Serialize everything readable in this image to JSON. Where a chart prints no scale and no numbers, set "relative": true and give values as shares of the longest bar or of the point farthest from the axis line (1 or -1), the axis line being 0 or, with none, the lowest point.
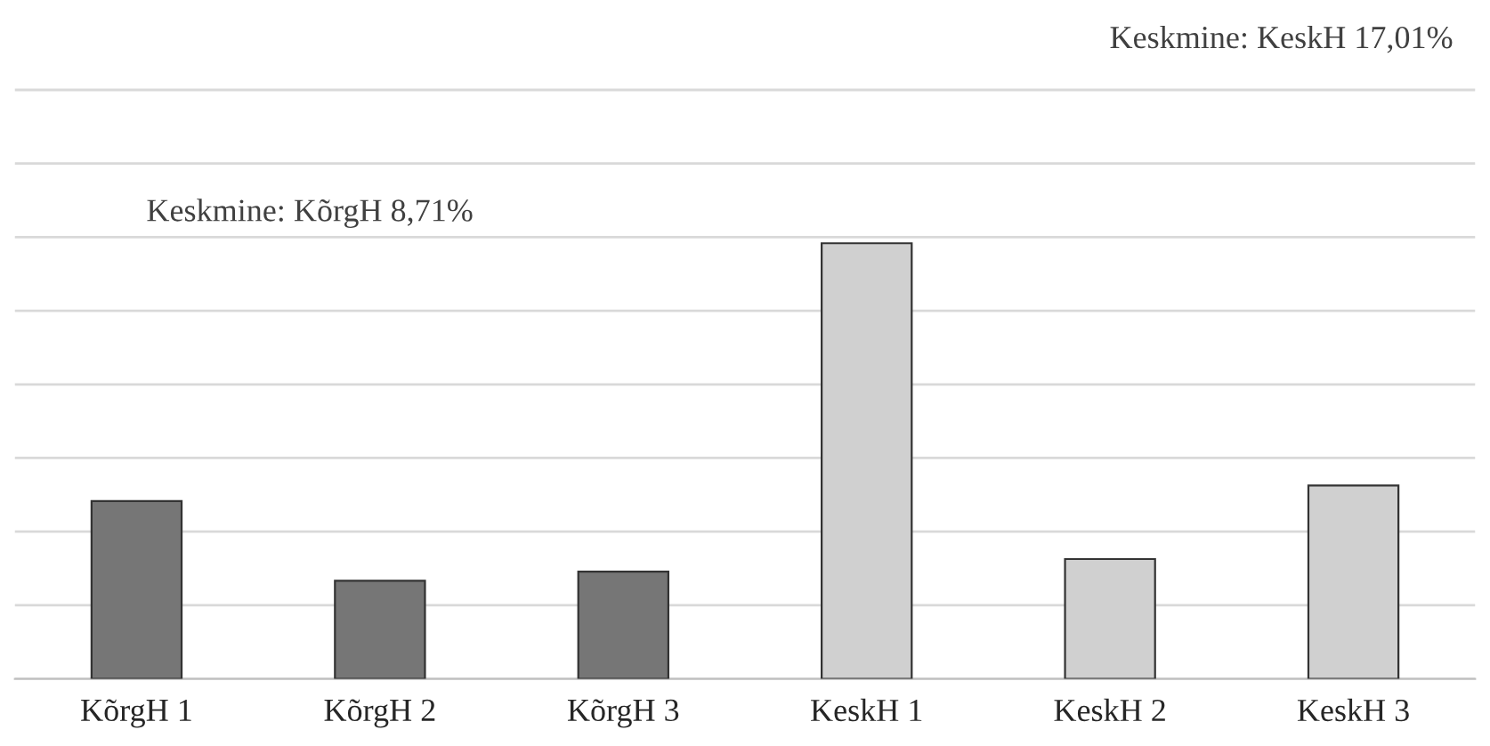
{
  "chart_data": {
    "type": "bar",
    "relative": true,
    "categories": [
      "KõrgH 1",
      "KõrgH 2",
      "KõrgH 3",
      "KeskH 1",
      "KeskH 2",
      "KeskH 3"
    ],
    "values": [
      0.408,
      0.225,
      0.246,
      1,
      0.275,
      0.444
    ],
    "colors": [
      "#767676",
      "#767676",
      "#767676",
      "#d0d0d0",
      "#d0d0d0",
      "#d0d0d0"
    ],
    "annotations": [
      "Keskmine: KõrgH 8,71%",
      "Keskmine: KeskH 17,01%"
    ],
    "grid": "y"
  }
}
